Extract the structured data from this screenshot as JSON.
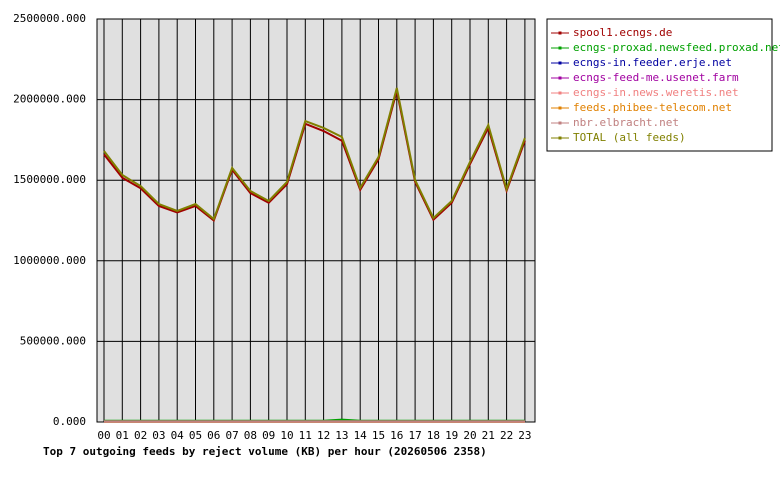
{
  "chart_data": {
    "type": "line",
    "title": "Top 7 outgoing feeds by reject volume (KB) per hour (20260506 2358)",
    "categories": [
      "00",
      "01",
      "02",
      "03",
      "04",
      "05",
      "06",
      "07",
      "08",
      "09",
      "10",
      "11",
      "12",
      "13",
      "14",
      "15",
      "16",
      "17",
      "18",
      "19",
      "20",
      "21",
      "22",
      "23"
    ],
    "ylim": [
      0,
      2500000
    ],
    "yticks": [
      {
        "value": 0,
        "label": "0.000"
      },
      {
        "value": 500000,
        "label": "500000.000"
      },
      {
        "value": 1000000,
        "label": "1000000.000"
      },
      {
        "value": 1500000,
        "label": "1500000.000"
      },
      {
        "value": 2000000,
        "label": "2000000.000"
      },
      {
        "value": 2500000,
        "label": "2500000.000"
      }
    ],
    "grid": true,
    "legend": "right",
    "series": [
      {
        "name": "spool1.ecngs.de",
        "color": "#a00000",
        "values": [
          1660000,
          1515000,
          1450000,
          1340000,
          1300000,
          1340000,
          1250000,
          1565000,
          1420000,
          1360000,
          1475000,
          1850000,
          1805000,
          1745000,
          1440000,
          1630000,
          2055000,
          1490000,
          1255000,
          1360000,
          1600000,
          1825000,
          1435000,
          1745000
        ]
      },
      {
        "name": "ecngs-proxad.newsfeed.proxad.net",
        "color": "#00a000",
        "values": [
          8000,
          8000,
          8000,
          8000,
          8000,
          8000,
          8000,
          8000,
          8000,
          8000,
          8000,
          8000,
          8000,
          15000,
          8000,
          8000,
          8000,
          8000,
          8000,
          8000,
          8000,
          8000,
          8000,
          8000
        ]
      },
      {
        "name": "ecngs-in.feeder.erje.net",
        "color": "#0000a0",
        "values": [
          2000,
          2000,
          2000,
          2000,
          2000,
          2000,
          2000,
          2000,
          2000,
          2000,
          2000,
          2000,
          2000,
          2000,
          2000,
          2000,
          2000,
          2000,
          2000,
          2000,
          2000,
          2000,
          2000,
          2000
        ]
      },
      {
        "name": "ecngs-feed-me.usenet.farm",
        "color": "#a000a0",
        "values": [
          2000,
          2000,
          2000,
          2000,
          2000,
          2000,
          2000,
          2000,
          2000,
          2000,
          2000,
          2000,
          2000,
          2000,
          2000,
          2000,
          2000,
          2000,
          2000,
          2000,
          2000,
          2000,
          2000,
          2000
        ]
      },
      {
        "name": "ecngs-in.news.weretis.net",
        "color": "#f08080",
        "values": [
          3000,
          3000,
          3000,
          3000,
          3000,
          3000,
          3000,
          3000,
          3000,
          3000,
          3000,
          3000,
          3000,
          3000,
          3000,
          3000,
          3000,
          3000,
          3000,
          3000,
          3000,
          3000,
          3000,
          3000
        ]
      },
      {
        "name": "feeds.phibee-telecom.net",
        "color": "#e08000",
        "values": [
          2000,
          2000,
          2000,
          2000,
          2000,
          2000,
          2000,
          2000,
          2000,
          2000,
          2000,
          2000,
          2000,
          2000,
          2000,
          2000,
          2000,
          2000,
          2000,
          2000,
          2000,
          2000,
          2000,
          2000
        ]
      },
      {
        "name": "nbr.elbracht.net",
        "color": "#c08080",
        "values": [
          5000,
          5000,
          5000,
          5000,
          5000,
          5000,
          5000,
          5000,
          5000,
          5000,
          5000,
          5000,
          5000,
          5000,
          5000,
          5000,
          5000,
          5000,
          5000,
          5000,
          5000,
          5000,
          5000,
          5000
        ]
      },
      {
        "name": "TOTAL (all feeds)",
        "color": "#808000",
        "values": [
          1681000,
          1532000,
          1464000,
          1352000,
          1309000,
          1352000,
          1259000,
          1576000,
          1433000,
          1371000,
          1489000,
          1867000,
          1824000,
          1768000,
          1452000,
          1644000,
          2072000,
          1501000,
          1265000,
          1371000,
          1613000,
          1842000,
          1445000,
          1762000
        ]
      }
    ]
  }
}
